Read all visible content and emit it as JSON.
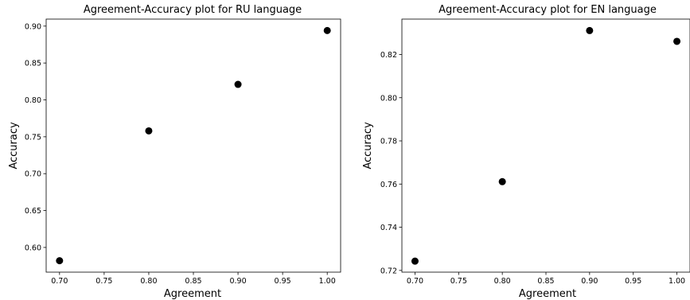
{
  "chart_data": [
    {
      "type": "scatter",
      "title": "Agreement-Accuracy plot for RU language",
      "xlabel": "Agreement",
      "ylabel": "Accuracy",
      "x": [
        0.7,
        0.8,
        0.9,
        1.0
      ],
      "y": [
        0.582,
        0.758,
        0.821,
        0.894
      ],
      "xlim": [
        0.685,
        1.015
      ],
      "ylim": [
        0.5665,
        0.9095
      ],
      "xticks": [
        "0.70",
        "0.75",
        "0.80",
        "0.85",
        "0.90",
        "0.95",
        "1.00"
      ],
      "yticks": [
        "0.60",
        "0.65",
        "0.70",
        "0.75",
        "0.80",
        "0.85",
        "0.90"
      ],
      "grid": false,
      "marker_color": "#000000"
    },
    {
      "type": "scatter",
      "title": "Agreement-Accuracy plot for EN language",
      "xlabel": "Agreement",
      "ylabel": "Accuracy",
      "x": [
        0.7,
        0.8,
        0.9,
        1.0
      ],
      "y": [
        0.7243,
        0.7611,
        0.8311,
        0.8261
      ],
      "xlim": [
        0.685,
        1.015
      ],
      "ylim": [
        0.7192,
        0.8364
      ],
      "xticks": [
        "0.70",
        "0.75",
        "0.80",
        "0.85",
        "0.90",
        "0.95",
        "1.00"
      ],
      "yticks": [
        "0.72",
        "0.74",
        "0.76",
        "0.78",
        "0.80",
        "0.82"
      ],
      "grid": false,
      "marker_color": "#000000"
    }
  ]
}
